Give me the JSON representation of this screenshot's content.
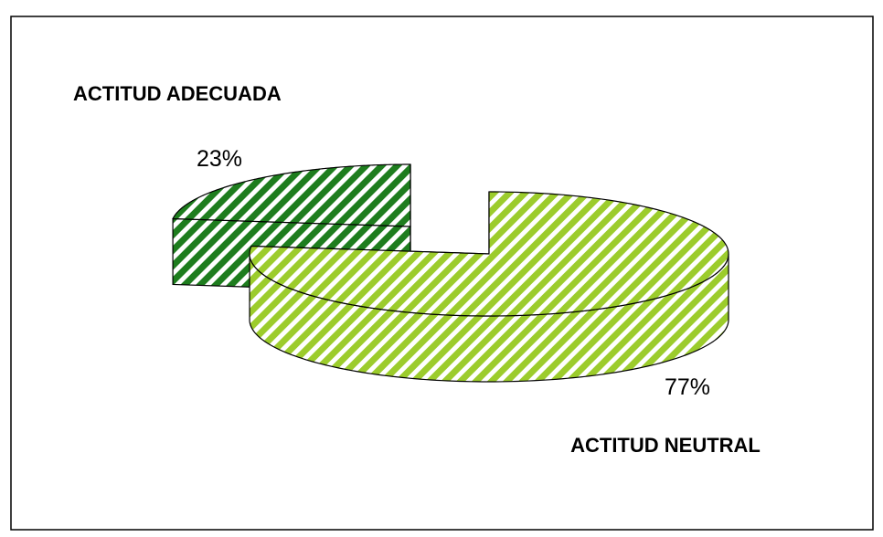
{
  "chart_data": {
    "type": "pie",
    "categories": [
      "ACTITUD ADECUADA",
      "ACTITUD NEUTRAL"
    ],
    "values": [
      23,
      77
    ],
    "value_labels": [
      "23%",
      "77%"
    ],
    "colors": [
      "#1e7d1e",
      "#9ccc2c"
    ]
  }
}
